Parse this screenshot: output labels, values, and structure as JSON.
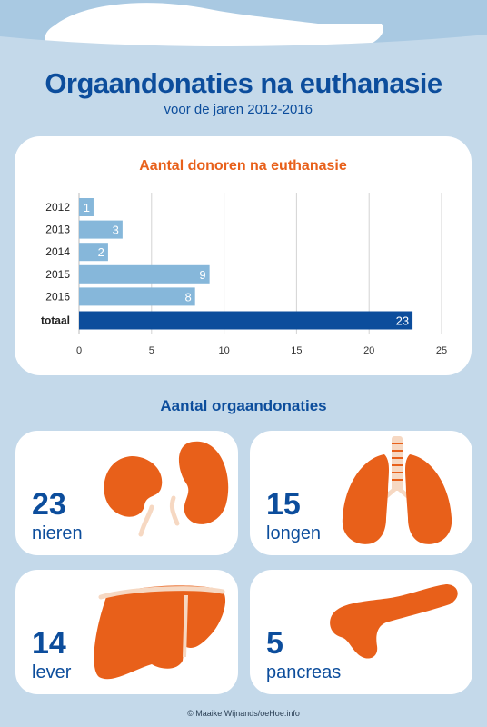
{
  "header": {
    "title": "Orgaandonaties na euthanasie",
    "subtitle": "voor de jaren 2012-2016"
  },
  "chart_data": {
    "type": "bar",
    "orientation": "horizontal",
    "title": "Aantal donoren na euthanasie",
    "categories": [
      "2012",
      "2013",
      "2014",
      "2015",
      "2016",
      "totaal"
    ],
    "values": [
      1,
      3,
      2,
      9,
      8,
      23
    ],
    "xlim": [
      0,
      25
    ],
    "xticks": [
      0,
      5,
      10,
      15,
      20,
      25
    ],
    "grid": true,
    "colors": {
      "years": "#86b7da",
      "total": "#0c4d9c"
    }
  },
  "donations": {
    "title": "Aantal orgaandonaties",
    "items": [
      {
        "count": "23",
        "organ": "nieren",
        "icon": "kidneys-icon"
      },
      {
        "count": "15",
        "organ": "longen",
        "icon": "lungs-icon"
      },
      {
        "count": "14",
        "organ": "lever",
        "icon": "liver-icon"
      },
      {
        "count": "5",
        "organ": "pancreas",
        "icon": "pancreas-icon"
      }
    ]
  },
  "footer": {
    "credit": "© Maaike Wijnands/oeHoe.info"
  },
  "colors": {
    "background": "#c4d9ea",
    "brand_blue": "#0c4d9c",
    "organ_orange": "#e8601a",
    "organ_detail": "#f6d8c2"
  }
}
